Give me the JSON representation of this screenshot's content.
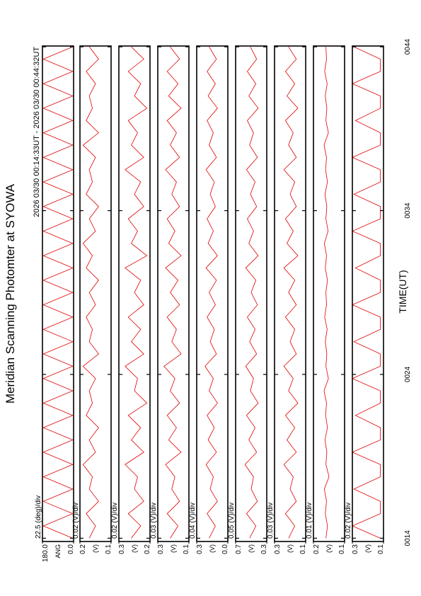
{
  "chart_data": {
    "type": "line",
    "title": "Meridian Scanning Photomter at SYOWA",
    "subtitle": "2026 03/30 00:14:33UT - 2026 03/30 00:44:32UT",
    "xlabel": "TIME(UT)",
    "xlim": [
      13.8,
      44.05
    ],
    "xticks": [
      {
        "value": 14,
        "label": "0014"
      },
      {
        "value": 24,
        "label": "0024"
      },
      {
        "value": 34,
        "label": "0034"
      },
      {
        "value": 44,
        "label": "0044"
      }
    ],
    "x": [
      14,
      14.75,
      15.5,
      16.25,
      17,
      17.75,
      18.5,
      19.25,
      20,
      20.75,
      21.5,
      22.25,
      23,
      23.75,
      24.5,
      25.25,
      26,
      26.75,
      27.5,
      28.25,
      29,
      29.75,
      30.5,
      31.25,
      32,
      32.75,
      33.5,
      34.25,
      35,
      35.75,
      36.5,
      37.25,
      38,
      38.75,
      39.5,
      40.25,
      41,
      41.75,
      42.5,
      43.25,
      44
    ],
    "panels": [
      {
        "scale_label": "22.5 (deg)/div",
        "unit_label": "ANG",
        "color": "#e00000",
        "ylim": [
          0,
          180
        ],
        "yticks": [
          {
            "value": 180,
            "label": "180.0"
          },
          {
            "value": 0,
            "label": "0.0"
          }
        ],
        "values": [
          5,
          175,
          5,
          175,
          5,
          175,
          5,
          175,
          5,
          175,
          5,
          175,
          5,
          175,
          5,
          175,
          5,
          175,
          5,
          175,
          5,
          175,
          5,
          175,
          5,
          175,
          5,
          175,
          5,
          175,
          5,
          175,
          5,
          175,
          5,
          175,
          5,
          175,
          5,
          175,
          5
        ]
      },
      {
        "scale_label": "0.02 (V)/div",
        "unit_label": "(V)",
        "color": "#e00000",
        "ylim": [
          0.1,
          0.2
        ],
        "yticks": [
          0.2,
          0.1
        ],
        "values": [
          0.17,
          0.15,
          0.18,
          0.14,
          0.17,
          0.16,
          0.19,
          0.15,
          0.17,
          0.14,
          0.18,
          0.16,
          0.17,
          0.15,
          0.19,
          0.14,
          0.17,
          0.16,
          0.18,
          0.15,
          0.17,
          0.14,
          0.18,
          0.16,
          0.19,
          0.15,
          0.17,
          0.14,
          0.18,
          0.16,
          0.17,
          0.15,
          0.19,
          0.14,
          0.18,
          0.16,
          0.17,
          0.15,
          0.18,
          0.14,
          0.17
        ]
      },
      {
        "scale_label": "0.02 (V)/div",
        "unit_label": "(V)",
        "color": "#e00000",
        "ylim": [
          0.2,
          0.3
        ],
        "yticks": [
          0.3,
          0.2
        ],
        "values": [
          0.26,
          0.23,
          0.27,
          0.22,
          0.25,
          0.24,
          0.28,
          0.22,
          0.26,
          0.23,
          0.27,
          0.21,
          0.25,
          0.24,
          0.28,
          0.22,
          0.26,
          0.23,
          0.27,
          0.22,
          0.25,
          0.23,
          0.28,
          0.21,
          0.26,
          0.24,
          0.27,
          0.22,
          0.25,
          0.23,
          0.28,
          0.22,
          0.26,
          0.24,
          0.27,
          0.21,
          0.25,
          0.23,
          0.27,
          0.22,
          0.26
        ]
      },
      {
        "scale_label": "0.03 (V)/div",
        "unit_label": "(V)",
        "color": "#e00000",
        "ylim": [
          0.1,
          0.3
        ],
        "yticks": [
          0.3,
          0.1
        ],
        "values": [
          0.22,
          0.17,
          0.24,
          0.16,
          0.21,
          0.19,
          0.25,
          0.15,
          0.23,
          0.18,
          0.24,
          0.16,
          0.22,
          0.19,
          0.26,
          0.15,
          0.21,
          0.18,
          0.24,
          0.16,
          0.22,
          0.17,
          0.25,
          0.15,
          0.23,
          0.19,
          0.24,
          0.16,
          0.21,
          0.18,
          0.25,
          0.16,
          0.22,
          0.18,
          0.24,
          0.15,
          0.23,
          0.17,
          0.24,
          0.16,
          0.22
        ]
      },
      {
        "scale_label": "0.04 (V)/div",
        "unit_label": "(V)",
        "color": "#e00000",
        "ylim": [
          0,
          0.3
        ],
        "yticks": [
          0.3,
          {
            "value": 0,
            "label": "0.0"
          }
        ],
        "values": [
          0.18,
          0.12,
          0.2,
          0.1,
          0.17,
          0.14,
          0.21,
          0.11,
          0.19,
          0.13,
          0.2,
          0.1,
          0.18,
          0.14,
          0.22,
          0.11,
          0.17,
          0.13,
          0.2,
          0.12,
          0.18,
          0.11,
          0.21,
          0.1,
          0.19,
          0.14,
          0.2,
          0.12,
          0.17,
          0.13,
          0.21,
          0.11,
          0.18,
          0.14,
          0.2,
          0.1,
          0.19,
          0.12,
          0.2,
          0.11,
          0.18
        ]
      },
      {
        "scale_label": "0.05 (V)/div",
        "unit_label": "(V)",
        "color": "#e00000",
        "ylim": [
          0.3,
          0.7
        ],
        "yticks": [
          0.7,
          0.3
        ],
        "values": [
          0.52,
          0.44,
          0.56,
          0.42,
          0.5,
          0.47,
          0.58,
          0.43,
          0.53,
          0.45,
          0.56,
          0.41,
          0.51,
          0.47,
          0.57,
          0.43,
          0.52,
          0.45,
          0.55,
          0.42,
          0.5,
          0.44,
          0.57,
          0.41,
          0.53,
          0.47,
          0.55,
          0.43,
          0.51,
          0.45,
          0.56,
          0.42,
          0.52,
          0.47,
          0.55,
          0.41,
          0.53,
          0.44,
          0.55,
          0.43,
          0.51
        ]
      },
      {
        "scale_label": "0.03 (V)/div",
        "unit_label": "(V)",
        "color": "#e00000",
        "ylim": [
          0.1,
          0.3
        ],
        "yticks": [
          0.3,
          0.1
        ],
        "values": [
          0.21,
          0.17,
          0.23,
          0.16,
          0.2,
          0.18,
          0.24,
          0.16,
          0.22,
          0.17,
          0.23,
          0.15,
          0.21,
          0.18,
          0.24,
          0.16,
          0.2,
          0.17,
          0.23,
          0.16,
          0.21,
          0.17,
          0.24,
          0.15,
          0.22,
          0.18,
          0.23,
          0.16,
          0.2,
          0.17,
          0.24,
          0.16,
          0.21,
          0.18,
          0.23,
          0.15,
          0.22,
          0.17,
          0.23,
          0.16,
          0.21
        ]
      },
      {
        "scale_label": "0.01 (V)/div",
        "unit_label": "(V)",
        "color": "#e00000",
        "ylim": [
          0.1,
          0.2
        ],
        "yticks": [
          0.2,
          0.1
        ],
        "values": [
          0.16,
          0.155,
          0.162,
          0.158,
          0.165,
          0.15,
          0.16,
          0.157,
          0.163,
          0.155,
          0.161,
          0.158,
          0.166,
          0.152,
          0.16,
          0.157,
          0.162,
          0.156,
          0.164,
          0.158,
          0.16,
          0.155,
          0.162,
          0.158,
          0.165,
          0.153,
          0.16,
          0.157,
          0.163,
          0.155,
          0.161,
          0.158,
          0.166,
          0.152,
          0.16,
          0.157,
          0.162,
          0.156,
          0.164,
          0.158,
          0.16
        ]
      },
      {
        "scale_label": "0.02 (V)/div",
        "unit_label": "(V)",
        "color": "#e00000",
        "ylim": [
          0.1,
          0.3
        ],
        "yticks": [
          0.3,
          0.1
        ],
        "values": [
          0.12,
          0.3,
          0.12,
          0.12,
          0.29,
          0.12,
          0.12,
          0.3,
          0.12,
          0.12,
          0.28,
          0.12,
          0.12,
          0.3,
          0.12,
          0.12,
          0.29,
          0.12,
          0.12,
          0.3,
          0.12,
          0.12,
          0.28,
          0.12,
          0.12,
          0.3,
          0.12,
          0.12,
          0.29,
          0.12,
          0.12,
          0.3,
          0.12,
          0.12,
          0.28,
          0.12,
          0.12,
          0.3,
          0.12,
          0.12,
          0.29
        ]
      }
    ]
  }
}
